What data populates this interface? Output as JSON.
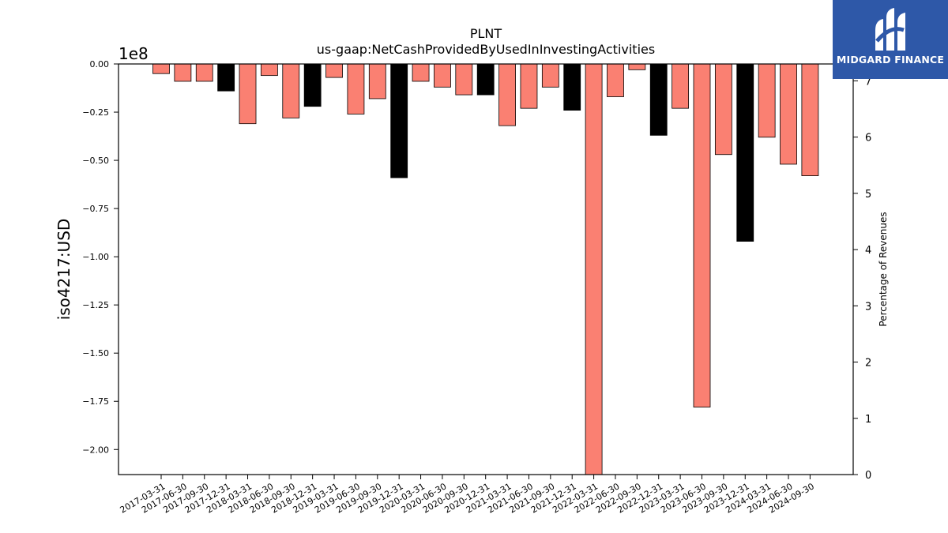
{
  "chart_data": {
    "type": "bar",
    "title": "PLNT",
    "subtitle": "us-gaap:NetCashProvidedByUsedInInvestingActivities",
    "ylabel": "iso4217:USD",
    "y2label": "Percentage of Revenues",
    "offset_label": "1e8",
    "y_scale": 100000000,
    "ylim": [
      -2.13,
      0.0
    ],
    "y_ticks": [
      0.0,
      -0.25,
      -0.5,
      -0.75,
      -1.0,
      -1.25,
      -1.5,
      -1.75,
      -2.0
    ],
    "y_tick_labels": [
      "0.00",
      "−0.25",
      "−0.50",
      "−0.75",
      "−1.00",
      "−1.25",
      "−1.50",
      "−1.75",
      "−2.00"
    ],
    "y2lim": [
      0,
      7.3
    ],
    "y2_ticks": [
      0,
      1,
      2,
      3,
      4,
      5,
      6,
      7
    ],
    "y2_tick_labels": [
      "0",
      "1",
      "2",
      "3",
      "4",
      "5",
      "6",
      "7"
    ],
    "categories": [
      "2017-03-31",
      "2017-06-30",
      "2017-09-30",
      "2017-12-31",
      "2018-03-31",
      "2018-06-30",
      "2018-09-30",
      "2018-12-31",
      "2019-03-31",
      "2019-06-30",
      "2019-09-30",
      "2019-12-31",
      "2020-03-31",
      "2020-06-30",
      "2020-09-30",
      "2020-12-31",
      "2021-03-31",
      "2021-06-30",
      "2021-09-30",
      "2021-12-31",
      "2022-03-31",
      "2022-06-30",
      "2022-09-30",
      "2022-12-31",
      "2023-03-31",
      "2023-06-30",
      "2023-09-30",
      "2023-12-31",
      "2024-03-31",
      "2024-06-30",
      "2024-09-30"
    ],
    "values": [
      -0.05,
      -0.09,
      -0.09,
      -0.14,
      -0.31,
      -0.06,
      -0.28,
      -0.22,
      -0.07,
      -0.26,
      -0.18,
      -0.59,
      -0.09,
      -0.12,
      -0.16,
      -0.16,
      -0.32,
      -0.23,
      -0.12,
      -0.24,
      -2.13,
      -0.17,
      -0.03,
      -0.37,
      -0.23,
      -1.78,
      -0.47,
      -0.92,
      -0.38,
      -0.52,
      -0.58
    ],
    "bar_colors": [
      "salmon",
      "salmon",
      "salmon",
      "black",
      "salmon",
      "salmon",
      "salmon",
      "black",
      "salmon",
      "salmon",
      "salmon",
      "black",
      "salmon",
      "salmon",
      "salmon",
      "black",
      "salmon",
      "salmon",
      "salmon",
      "black",
      "salmon",
      "salmon",
      "salmon",
      "black",
      "salmon",
      "salmon",
      "salmon",
      "black",
      "salmon",
      "salmon",
      "salmon"
    ],
    "colors": {
      "salmon": "#fa8072",
      "black": "#000000",
      "bar_edge": "#000000"
    },
    "grid": false,
    "legend": "none"
  },
  "logo": {
    "text": "MIDGARD FINANCE",
    "background": "#2e58a8"
  }
}
